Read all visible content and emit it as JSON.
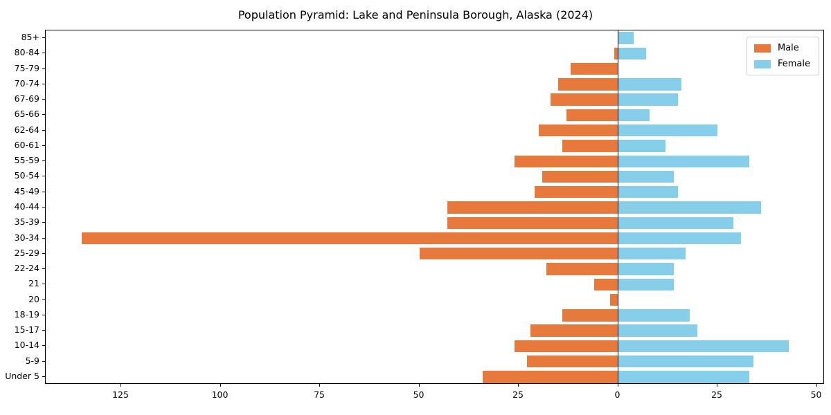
{
  "chart_data": {
    "type": "bar",
    "subtype": "population-pyramid",
    "orientation": "horizontal",
    "title": "Population Pyramid: Lake and Peninsula Borough, Alaska (2024)",
    "categories": [
      "85+",
      "80-84",
      "75-79",
      "70-74",
      "67-69",
      "65-66",
      "62-64",
      "60-61",
      "55-59",
      "50-54",
      "45-49",
      "40-44",
      "35-39",
      "30-34",
      "25-29",
      "22-24",
      "21",
      "20",
      "18-19",
      "15-17",
      "10-14",
      "5-9",
      "Under 5"
    ],
    "series": [
      {
        "name": "Male",
        "side": "left",
        "color": "#e8793c",
        "values": [
          0,
          1,
          12,
          15,
          17,
          13,
          20,
          14,
          26,
          19,
          21,
          43,
          43,
          135,
          50,
          18,
          6,
          2,
          14,
          22,
          26,
          23,
          34
        ]
      },
      {
        "name": "Female",
        "side": "right",
        "color": "#87ceeb",
        "values": [
          4,
          7,
          0,
          16,
          15,
          8,
          25,
          12,
          33,
          14,
          15,
          36,
          29,
          31,
          17,
          14,
          14,
          0,
          18,
          20,
          43,
          34,
          33
        ]
      }
    ],
    "xlim": [
      -144,
      52
    ],
    "xticks": [
      -125,
      -100,
      -75,
      -50,
      -25,
      0,
      25,
      50
    ],
    "xtick_labels": [
      "125",
      "100",
      "75",
      "50",
      "25",
      "0",
      "25",
      "50"
    ],
    "ylabel": "",
    "xlabel": "",
    "grid": false,
    "legend_position": "upper right",
    "axis_color": "#000000",
    "background_color": "#ffffff"
  }
}
